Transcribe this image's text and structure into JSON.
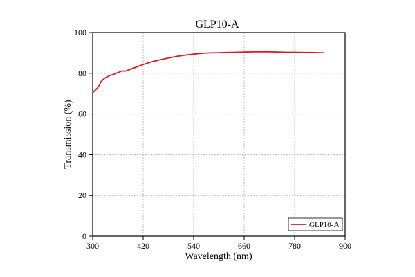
{
  "chart_data": {
    "type": "line",
    "title": "GLP10-A",
    "xlabel": "Wavelength (nm)",
    "ylabel": "Transmission (%)",
    "xlim": [
      300,
      900
    ],
    "ylim": [
      0,
      100
    ],
    "xticks": [
      300,
      420,
      540,
      660,
      780,
      900
    ],
    "yticks": [
      0,
      20,
      40,
      60,
      80,
      100
    ],
    "grid": true,
    "legend_position": "bottom-right",
    "series": [
      {
        "name": "GLP10-A",
        "color": "#e8141c",
        "x": [
          300,
          305,
          310,
          315,
          320,
          325,
          330,
          340,
          350,
          360,
          370,
          375,
          380,
          390,
          400,
          420,
          440,
          460,
          480,
          500,
          520,
          540,
          560,
          580,
          600,
          620,
          640,
          660,
          680,
          700,
          720,
          740,
          760,
          780,
          800,
          820,
          840,
          850
        ],
        "y": [
          70.5,
          71.5,
          72.5,
          73.8,
          76.0,
          77.0,
          77.8,
          78.8,
          79.5,
          80.3,
          81.2,
          81.0,
          81.2,
          82.0,
          82.8,
          84.3,
          85.6,
          86.6,
          87.5,
          88.3,
          88.9,
          89.4,
          89.8,
          90.0,
          90.1,
          90.2,
          90.3,
          90.4,
          90.5,
          90.5,
          90.5,
          90.4,
          90.3,
          90.3,
          90.2,
          90.2,
          90.1,
          90.1
        ]
      }
    ]
  }
}
